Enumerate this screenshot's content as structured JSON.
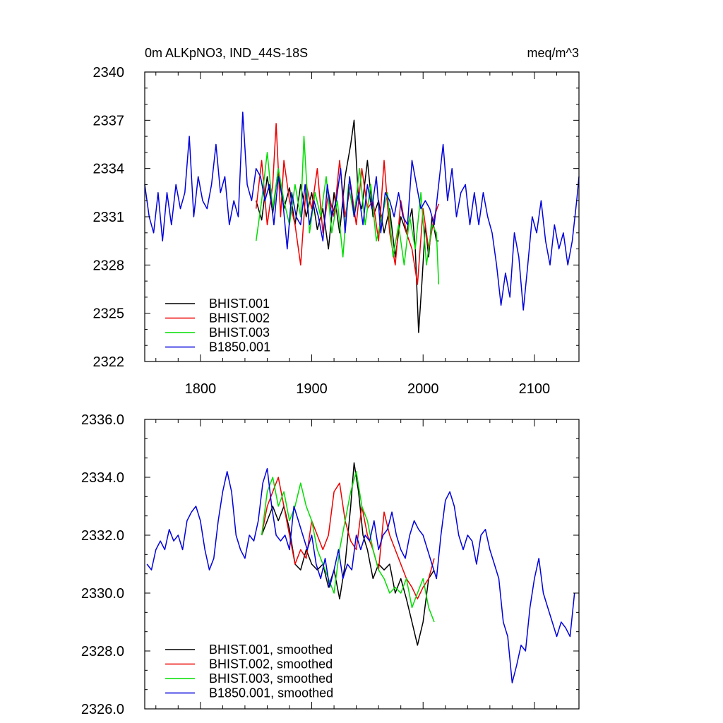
{
  "colors": {
    "BHIST.001": "#000000",
    "BHIST.002": "#ee0000",
    "BHIST.003": "#00dd00",
    "B1850.001": "#0000dd"
  },
  "chart_data": [
    {
      "type": "line",
      "title": "0m ALKpNO3, IND_44S-18S",
      "units": "meq/m^3",
      "xlim": [
        1750,
        2140
      ],
      "ylim": [
        2322,
        2340
      ],
      "xticks": [
        1800,
        1900,
        2000,
        2100
      ],
      "yticks": [
        2322,
        2325,
        2328,
        2331,
        2334,
        2337,
        2340
      ],
      "ytick_labels": [
        "2322",
        "2325",
        "2328",
        "2331",
        "2334",
        "2337",
        "2340"
      ],
      "xtick_labels": [
        "1800",
        "1900",
        "2000",
        "2100"
      ],
      "legend_position": "bottom-left",
      "series": [
        {
          "name": "BHIST.001",
          "color": "#000000",
          "x": [
            1850,
            1855,
            1860,
            1865,
            1870,
            1875,
            1880,
            1885,
            1890,
            1895,
            1900,
            1905,
            1910,
            1915,
            1920,
            1925,
            1930,
            1935,
            1938,
            1942,
            1945,
            1950,
            1955,
            1960,
            1965,
            1970,
            1975,
            1980,
            1985,
            1990,
            1993,
            1996,
            1999,
            2002,
            2005,
            2008,
            2012,
            2014
          ],
          "y": [
            2332.0,
            2330.8,
            2333.5,
            2331.2,
            2334.0,
            2331.5,
            2332.8,
            2330.5,
            2333.0,
            2331.0,
            2332.5,
            2330.2,
            2331.5,
            2329.0,
            2332.5,
            2330.0,
            2333.5,
            2335.5,
            2337.0,
            2332.0,
            2331.5,
            2334.5,
            2331.0,
            2332.0,
            2330.0,
            2331.5,
            2328.5,
            2331.0,
            2330.0,
            2331.5,
            2329.0,
            2323.8,
            2327.0,
            2330.5,
            2328.5,
            2331.0,
            2329.5,
            2329.5
          ]
        },
        {
          "name": "BHIST.002",
          "color": "#ee0000",
          "x": [
            1850,
            1855,
            1860,
            1865,
            1868,
            1872,
            1875,
            1880,
            1885,
            1890,
            1895,
            1900,
            1905,
            1910,
            1915,
            1920,
            1925,
            1930,
            1935,
            1940,
            1945,
            1950,
            1955,
            1960,
            1965,
            1970,
            1975,
            1980,
            1985,
            1990,
            1995,
            2000,
            2005,
            2010,
            2014
          ],
          "y": [
            2331.5,
            2334.5,
            2330.5,
            2333.0,
            2336.8,
            2331.0,
            2334.5,
            2332.0,
            2330.5,
            2328.0,
            2333.0,
            2331.5,
            2334.0,
            2330.0,
            2332.5,
            2331.0,
            2334.5,
            2331.0,
            2333.0,
            2330.5,
            2334.0,
            2331.5,
            2332.0,
            2329.5,
            2334.5,
            2330.0,
            2328.0,
            2332.0,
            2330.0,
            2329.0,
            2326.8,
            2331.5,
            2329.0,
            2331.0,
            2331.8
          ]
        },
        {
          "name": "BHIST.003",
          "color": "#00dd00",
          "x": [
            1850,
            1855,
            1860,
            1865,
            1870,
            1875,
            1880,
            1885,
            1890,
            1893,
            1898,
            1903,
            1908,
            1913,
            1918,
            1923,
            1928,
            1933,
            1938,
            1943,
            1948,
            1953,
            1958,
            1963,
            1968,
            1973,
            1978,
            1983,
            1988,
            1993,
            1998,
            2003,
            2008,
            2012,
            2014
          ],
          "y": [
            2329.5,
            2332.0,
            2335.0,
            2331.5,
            2334.0,
            2332.0,
            2330.5,
            2333.0,
            2331.0,
            2336.0,
            2330.0,
            2332.5,
            2331.0,
            2333.5,
            2330.0,
            2332.0,
            2328.5,
            2333.0,
            2331.0,
            2334.0,
            2330.5,
            2333.0,
            2329.5,
            2331.0,
            2332.5,
            2328.5,
            2330.5,
            2328.0,
            2331.0,
            2329.0,
            2332.5,
            2328.0,
            2330.5,
            2330.0,
            2326.8
          ]
        },
        {
          "name": "B1850.001",
          "color": "#0000dd",
          "x": [
            1750,
            1754,
            1758,
            1762,
            1766,
            1770,
            1774,
            1778,
            1782,
            1786,
            1790,
            1794,
            1798,
            1802,
            1806,
            1810,
            1814,
            1818,
            1822,
            1826,
            1830,
            1834,
            1838,
            1842,
            1846,
            1850,
            1854,
            1858,
            1862,
            1866,
            1870,
            1874,
            1878,
            1882,
            1886,
            1890,
            1894,
            1898,
            1902,
            1906,
            1910,
            1914,
            1918,
            1922,
            1926,
            1930,
            1934,
            1938,
            1942,
            1946,
            1950,
            1954,
            1958,
            1962,
            1966,
            1970,
            1974,
            1978,
            1982,
            1986,
            1990,
            1994,
            1998,
            2002,
            2006,
            2010,
            2014,
            2018,
            2022,
            2026,
            2030,
            2034,
            2038,
            2042,
            2046,
            2050,
            2054,
            2058,
            2062,
            2066,
            2070,
            2074,
            2078,
            2082,
            2086,
            2090,
            2094,
            2098,
            2102,
            2106,
            2110,
            2114,
            2118,
            2122,
            2126,
            2130,
            2134,
            2138,
            2140
          ],
          "y": [
            2333.0,
            2331.0,
            2330.0,
            2332.5,
            2329.5,
            2332.5,
            2330.5,
            2333.0,
            2331.5,
            2332.5,
            2336.0,
            2331.0,
            2333.5,
            2332.0,
            2331.5,
            2333.0,
            2335.5,
            2332.5,
            2333.5,
            2330.5,
            2332.0,
            2331.0,
            2337.5,
            2333.0,
            2332.0,
            2334.0,
            2333.5,
            2332.0,
            2333.0,
            2330.5,
            2333.5,
            2332.0,
            2329.0,
            2332.5,
            2331.0,
            2330.5,
            2333.0,
            2330.5,
            2332.0,
            2331.0,
            2329.5,
            2333.0,
            2331.0,
            2332.0,
            2334.0,
            2330.0,
            2333.5,
            2331.0,
            2332.5,
            2330.5,
            2333.0,
            2331.5,
            2333.5,
            2330.0,
            2332.5,
            2332.0,
            2331.0,
            2332.5,
            2331.0,
            2330.5,
            2334.5,
            2333.0,
            2331.5,
            2332.0,
            2331.5,
            2330.5,
            2333.0,
            2335.5,
            2332.0,
            2334.0,
            2331.0,
            2332.5,
            2333.0,
            2330.5,
            2332.5,
            2330.5,
            2332.5,
            2331.0,
            2330.0,
            2328.0,
            2325.5,
            2327.5,
            2326.0,
            2330.0,
            2328.5,
            2325.2,
            2328.0,
            2331.0,
            2330.0,
            2332.0,
            2329.5,
            2328.0,
            2330.5,
            2329.0,
            2330.0,
            2328.0,
            2329.5,
            2332.0,
            2333.5
          ]
        }
      ]
    },
    {
      "type": "line",
      "xlim": [
        1750,
        2140
      ],
      "ylim": [
        2326,
        2336
      ],
      "xticks": [
        1800,
        1900,
        2000,
        2100
      ],
      "yticks": [
        2326,
        2328,
        2330,
        2332,
        2334,
        2336
      ],
      "ytick_labels": [
        "2326.0",
        "2328.0",
        "2330.0",
        "2332.0",
        "2334.0",
        "2336.0"
      ],
      "legend_position": "bottom-left",
      "series": [
        {
          "name": "BHIST.001, smoothed",
          "color": "#000000",
          "x": [
            1855,
            1860,
            1865,
            1870,
            1875,
            1880,
            1885,
            1890,
            1895,
            1900,
            1905,
            1910,
            1915,
            1920,
            1925,
            1930,
            1935,
            1938,
            1942,
            1946,
            1950,
            1955,
            1960,
            1965,
            1970,
            1975,
            1980,
            1985,
            1990,
            1995,
            2000,
            2005,
            2010
          ],
          "y": [
            2332.0,
            2332.5,
            2333.0,
            2332.5,
            2333.0,
            2332.2,
            2331.0,
            2330.8,
            2331.5,
            2331.0,
            2330.8,
            2331.0,
            2330.2,
            2330.8,
            2329.8,
            2331.0,
            2333.0,
            2334.5,
            2333.5,
            2332.0,
            2331.5,
            2330.5,
            2331.0,
            2330.8,
            2331.0,
            2330.0,
            2330.5,
            2329.8,
            2329.0,
            2328.2,
            2329.0,
            2330.5,
            2330.8
          ]
        },
        {
          "name": "BHIST.002, smoothed",
          "color": "#ee0000",
          "x": [
            1855,
            1860,
            1865,
            1870,
            1875,
            1880,
            1885,
            1890,
            1895,
            1900,
            1905,
            1910,
            1915,
            1920,
            1925,
            1930,
            1935,
            1940,
            1945,
            1950,
            1955,
            1960,
            1965,
            1970,
            1975,
            1980,
            1985,
            1990,
            1995,
            2000,
            2005,
            2010
          ],
          "y": [
            2332.0,
            2333.0,
            2333.5,
            2334.0,
            2333.0,
            2332.0,
            2331.0,
            2331.5,
            2331.2,
            2332.5,
            2332.0,
            2331.5,
            2332.0,
            2333.5,
            2333.8,
            2332.5,
            2331.8,
            2331.5,
            2333.0,
            2332.0,
            2331.5,
            2330.8,
            2332.8,
            2332.0,
            2331.5,
            2331.0,
            2330.5,
            2330.2,
            2329.8,
            2330.2,
            2330.5,
            2331.2
          ]
        },
        {
          "name": "BHIST.003, smoothed",
          "color": "#00dd00",
          "x": [
            1855,
            1860,
            1865,
            1870,
            1875,
            1880,
            1885,
            1890,
            1895,
            1900,
            1905,
            1910,
            1915,
            1920,
            1925,
            1930,
            1935,
            1940,
            1945,
            1950,
            1955,
            1960,
            1965,
            1970,
            1975,
            1980,
            1985,
            1990,
            1995,
            2000,
            2005,
            2010
          ],
          "y": [
            2332.0,
            2333.5,
            2334.0,
            2333.0,
            2333.5,
            2332.5,
            2333.0,
            2333.8,
            2333.0,
            2332.5,
            2331.5,
            2331.0,
            2330.5,
            2330.0,
            2331.5,
            2332.5,
            2333.5,
            2334.2,
            2333.0,
            2332.5,
            2331.5,
            2330.8,
            2330.5,
            2330.0,
            2330.2,
            2330.0,
            2330.5,
            2329.5,
            2330.0,
            2330.5,
            2329.5,
            2329.0
          ]
        },
        {
          "name": "B1850.001, smoothed",
          "color": "#0000dd",
          "x": [
            1752,
            1756,
            1760,
            1764,
            1768,
            1772,
            1776,
            1780,
            1784,
            1788,
            1792,
            1796,
            1800,
            1804,
            1808,
            1812,
            1816,
            1820,
            1824,
            1828,
            1832,
            1836,
            1840,
            1844,
            1848,
            1852,
            1856,
            1860,
            1864,
            1868,
            1872,
            1876,
            1880,
            1884,
            1888,
            1892,
            1896,
            1900,
            1904,
            1908,
            1912,
            1916,
            1920,
            1924,
            1928,
            1932,
            1936,
            1940,
            1944,
            1948,
            1952,
            1956,
            1960,
            1964,
            1968,
            1972,
            1976,
            1980,
            1984,
            1988,
            1992,
            1996,
            2000,
            2004,
            2008,
            2012,
            2016,
            2020,
            2024,
            2028,
            2032,
            2036,
            2040,
            2044,
            2048,
            2052,
            2056,
            2060,
            2064,
            2068,
            2072,
            2076,
            2080,
            2084,
            2088,
            2092,
            2096,
            2100,
            2104,
            2108,
            2112,
            2116,
            2120,
            2124,
            2128,
            2132,
            2136
          ],
          "y": [
            2331.0,
            2330.8,
            2331.5,
            2331.8,
            2331.5,
            2332.2,
            2331.8,
            2332.0,
            2331.5,
            2332.5,
            2332.8,
            2333.0,
            2332.5,
            2331.5,
            2330.8,
            2331.2,
            2332.5,
            2333.5,
            2334.2,
            2333.5,
            2332.0,
            2331.5,
            2331.2,
            2332.0,
            2331.8,
            2332.5,
            2333.8,
            2334.3,
            2333.0,
            2332.0,
            2331.8,
            2332.0,
            2331.5,
            2333.0,
            2332.5,
            2332.0,
            2331.5,
            2332.0,
            2331.0,
            2330.5,
            2331.2,
            2330.2,
            2330.8,
            2331.5,
            2330.5,
            2331.0,
            2330.8,
            2332.0,
            2331.5,
            2332.0,
            2331.8,
            2332.5,
            2331.5,
            2332.0,
            2332.2,
            2332.8,
            2332.0,
            2331.5,
            2331.2,
            2332.0,
            2332.5,
            2332.2,
            2332.0,
            2331.5,
            2331.0,
            2330.5,
            2332.0,
            2333.2,
            2333.5,
            2333.0,
            2332.0,
            2331.5,
            2332.0,
            2331.8,
            2331.0,
            2332.0,
            2332.2,
            2331.5,
            2331.0,
            2330.5,
            2329.0,
            2328.5,
            2326.9,
            2327.5,
            2328.2,
            2328.0,
            2329.5,
            2330.5,
            2331.2,
            2330.0,
            2329.5,
            2329.0,
            2328.5,
            2329.0,
            2328.8,
            2328.5,
            2330.0
          ]
        }
      ]
    }
  ]
}
